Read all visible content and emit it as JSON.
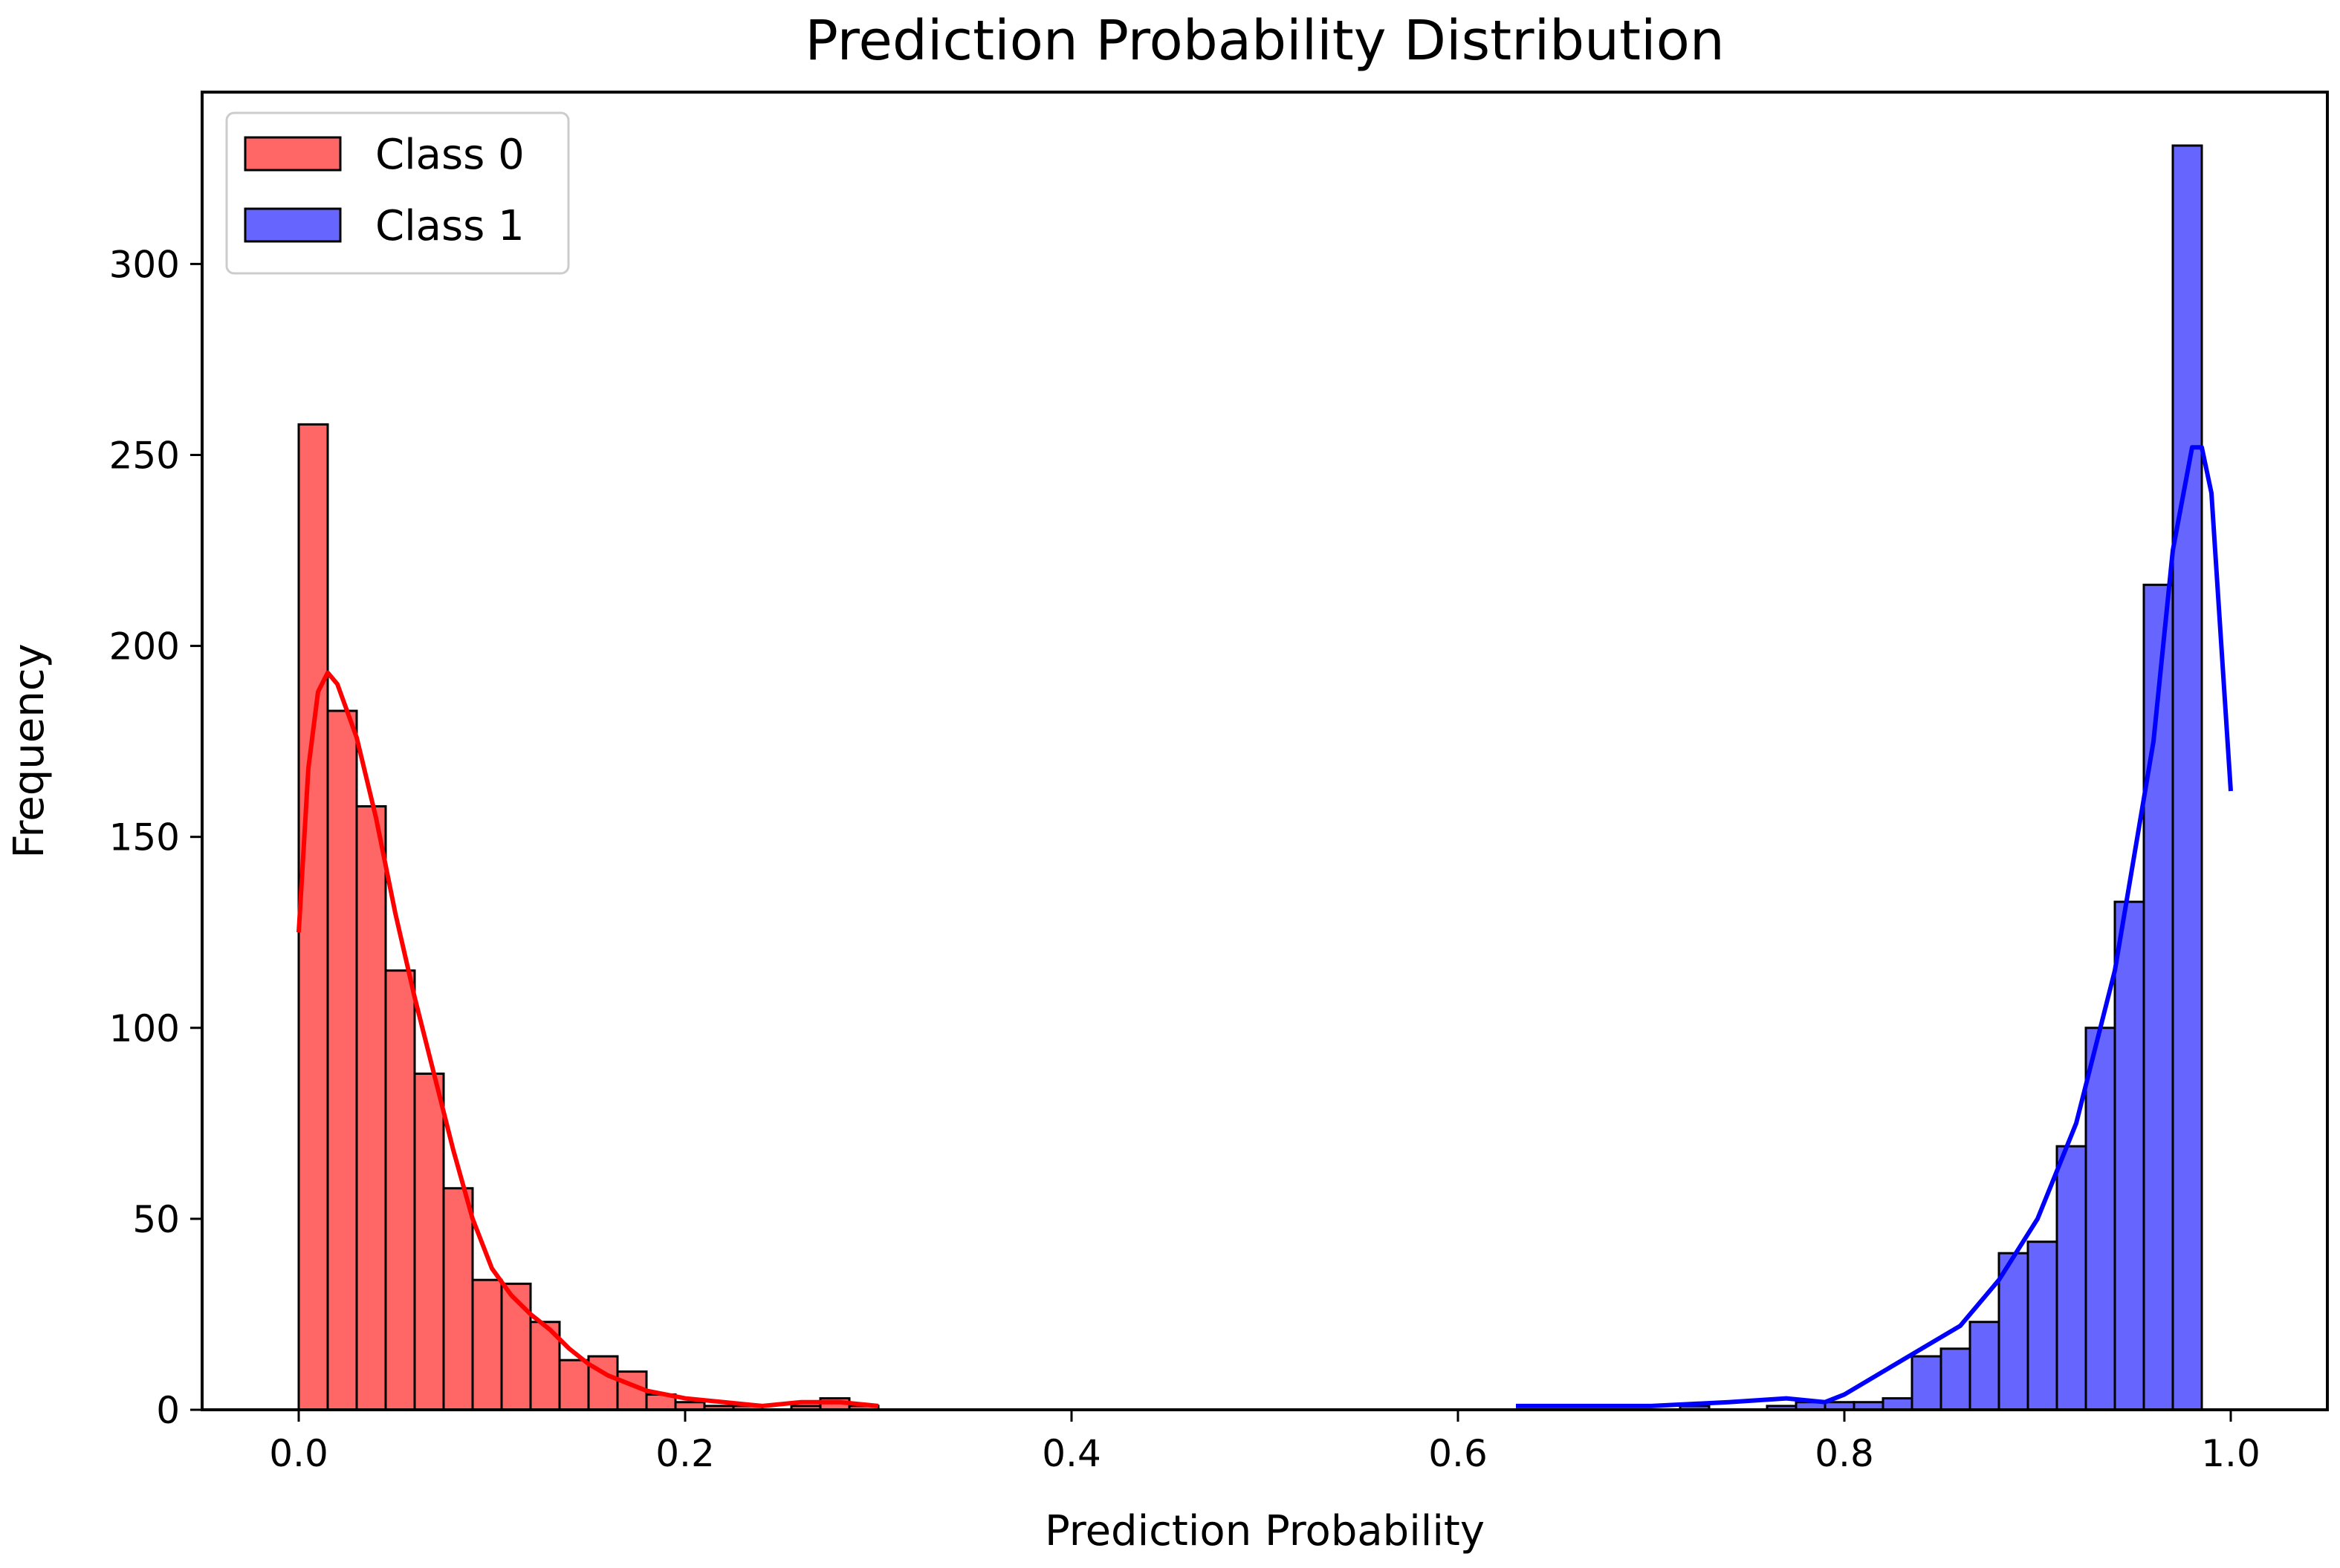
{
  "chart_data": {
    "type": "bar",
    "title": "Prediction Probability Distribution",
    "xlabel": "Prediction Probability",
    "ylabel": "Frequency",
    "xlim": [
      -0.05,
      1.05
    ],
    "ylim": [
      0,
      345
    ],
    "xticks": [
      "0.0",
      "0.2",
      "0.4",
      "0.6",
      "0.8",
      "1.0"
    ],
    "yticks": [
      "0",
      "50",
      "100",
      "150",
      "200",
      "250",
      "300"
    ],
    "legend_position": "top-left",
    "grid": false,
    "series": [
      {
        "name": "Class 0",
        "color": "#ff6666",
        "line_color": "#ff0000",
        "bin_width": 0.015,
        "bin_start": 0.0,
        "counts": [
          258,
          183,
          158,
          115,
          88,
          58,
          34,
          33,
          23,
          13,
          14,
          10,
          4,
          2,
          1,
          1,
          0,
          1,
          3,
          1
        ],
        "kde": [
          [
            0.0,
            125
          ],
          [
            0.005,
            168
          ],
          [
            0.01,
            188
          ],
          [
            0.015,
            193
          ],
          [
            0.02,
            190
          ],
          [
            0.03,
            176
          ],
          [
            0.04,
            155
          ],
          [
            0.05,
            130
          ],
          [
            0.06,
            108
          ],
          [
            0.07,
            88
          ],
          [
            0.08,
            68
          ],
          [
            0.09,
            50
          ],
          [
            0.1,
            37
          ],
          [
            0.11,
            30
          ],
          [
            0.12,
            25
          ],
          [
            0.13,
            21
          ],
          [
            0.14,
            16
          ],
          [
            0.15,
            12
          ],
          [
            0.16,
            9
          ],
          [
            0.18,
            5
          ],
          [
            0.2,
            3
          ],
          [
            0.22,
            2
          ],
          [
            0.24,
            1
          ],
          [
            0.26,
            2
          ],
          [
            0.28,
            2
          ],
          [
            0.3,
            1
          ]
        ]
      },
      {
        "name": "Class 1",
        "color": "#6666ff",
        "line_color": "#0000ff",
        "bin_width": 0.015,
        "bin_start": 0.7,
        "counts": [
          0,
          1,
          0,
          0,
          1,
          2,
          2,
          2,
          3,
          14,
          16,
          23,
          41,
          44,
          69,
          100,
          133,
          216,
          331,
          0
        ],
        "kde": [
          [
            0.63,
            1
          ],
          [
            0.66,
            1
          ],
          [
            0.7,
            1
          ],
          [
            0.74,
            2
          ],
          [
            0.77,
            3
          ],
          [
            0.79,
            2
          ],
          [
            0.8,
            4
          ],
          [
            0.82,
            10
          ],
          [
            0.84,
            16
          ],
          [
            0.86,
            22
          ],
          [
            0.88,
            34
          ],
          [
            0.9,
            50
          ],
          [
            0.92,
            75
          ],
          [
            0.94,
            115
          ],
          [
            0.96,
            175
          ],
          [
            0.97,
            225
          ],
          [
            0.98,
            252
          ],
          [
            0.985,
            252
          ],
          [
            0.99,
            240
          ],
          [
            1.0,
            162
          ]
        ]
      }
    ]
  }
}
